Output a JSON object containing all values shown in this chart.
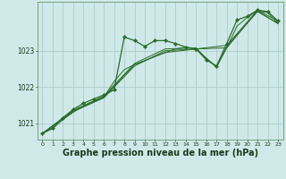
{
  "background_color": "#cfe8e8",
  "grid_color": "#a8c8c8",
  "line_color": "#2a6b2a",
  "xlabel": "Graphe pression niveau de la mer (hPa)",
  "xlabel_fontsize": 7,
  "xlim": [
    -0.5,
    23.5
  ],
  "ylim": [
    1020.55,
    1024.35
  ],
  "yticks": [
    1021,
    1022,
    1023
  ],
  "xticks": [
    0,
    1,
    2,
    3,
    4,
    5,
    6,
    7,
    8,
    9,
    10,
    11,
    12,
    13,
    14,
    15,
    16,
    17,
    18,
    19,
    20,
    21,
    22,
    23
  ],
  "series_main": {
    "x": [
      0,
      1,
      2,
      3,
      4,
      5,
      6,
      7,
      8,
      9,
      10,
      11,
      12,
      13,
      14,
      15,
      16,
      17,
      18,
      19,
      20,
      21,
      22,
      23
    ],
    "y": [
      1020.72,
      1020.88,
      1021.15,
      1021.38,
      1021.55,
      1021.67,
      1021.78,
      1021.92,
      1023.38,
      1023.28,
      1023.12,
      1023.28,
      1023.28,
      1023.2,
      1023.1,
      1023.05,
      1022.75,
      1022.58,
      1023.2,
      1023.85,
      1023.95,
      1024.12,
      1024.08,
      1023.82
    ],
    "marker": "D",
    "markersize": 2.2,
    "linewidth": 0.9
  },
  "series_smooth1": {
    "x": [
      0,
      1,
      2,
      3,
      4,
      5,
      6,
      7,
      8,
      9,
      10,
      11,
      12,
      13,
      14,
      15,
      16,
      17,
      18,
      19,
      20,
      21,
      22,
      23
    ],
    "y": [
      1020.72,
      1020.85,
      1021.1,
      1021.3,
      1021.48,
      1021.6,
      1021.72,
      1022.15,
      1022.48,
      1022.62,
      1022.72,
      1022.85,
      1022.95,
      1023.05,
      1023.1,
      1023.05,
      1022.8,
      1022.55,
      1023.08,
      1023.68,
      1023.92,
      1024.1,
      1024.05,
      1023.75
    ],
    "linewidth": 0.7
  },
  "series_sparse1": {
    "x": [
      0,
      3,
      6,
      9,
      12,
      15,
      18,
      21,
      23
    ],
    "y": [
      1020.72,
      1021.35,
      1021.72,
      1022.62,
      1022.95,
      1023.05,
      1023.08,
      1024.1,
      1023.75
    ],
    "linewidth": 0.7
  },
  "series_sparse2": {
    "x": [
      0,
      3,
      6,
      9,
      12,
      15,
      18,
      21,
      23
    ],
    "y": [
      1020.72,
      1021.32,
      1021.7,
      1022.58,
      1023.0,
      1023.05,
      1023.15,
      1024.12,
      1023.82
    ],
    "linewidth": 0.7
  },
  "series_sparse3": {
    "x": [
      0,
      3,
      6,
      9,
      12,
      15,
      16,
      17,
      18,
      21,
      23
    ],
    "y": [
      1020.72,
      1021.35,
      1021.75,
      1022.65,
      1023.05,
      1023.08,
      1022.78,
      1022.55,
      1023.12,
      1024.08,
      1023.75
    ],
    "linewidth": 0.7
  }
}
